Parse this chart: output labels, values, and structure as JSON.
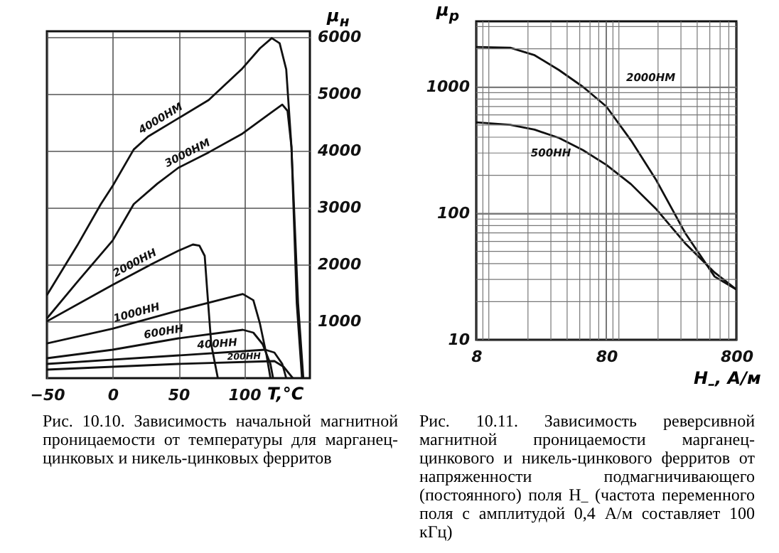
{
  "chart_data": [
    {
      "type": "line",
      "xlabel": "T,°C",
      "ylabel": "μ$_{н}$",
      "xlim": [
        -50,
        150
      ],
      "xticks": [
        -50,
        0,
        50,
        100
      ],
      "ylim": [
        0,
        6100
      ],
      "yticks": [
        1000,
        2000,
        3000,
        4000,
        5000,
        6000
      ],
      "grid": true,
      "annotations": [
        "Рис. 10.10. Зависимость начальной магнитной проницаемости от температуры для марганец-цинковых и никель-цинковых ферритов"
      ],
      "series": [
        {
          "name": "4000НМ",
          "color": "#111111",
          "x": [
            -50,
            -27,
            -9,
            0,
            16,
            27,
            50,
            73,
            98,
            112,
            121,
            127,
            132,
            136,
            141,
            145
          ],
          "values": [
            1460,
            2330,
            3060,
            3380,
            4020,
            4250,
            4570,
            4890,
            5430,
            5800,
            5980,
            5890,
            5430,
            4060,
            1320,
            0
          ]
        },
        {
          "name": "3000НМ",
          "color": "#111111",
          "x": [
            -50,
            -27,
            0,
            16,
            34,
            50,
            73,
            98,
            120,
            129,
            133,
            136,
            140,
            144
          ],
          "values": [
            1050,
            1690,
            2420,
            3060,
            3420,
            3700,
            3970,
            4290,
            4660,
            4810,
            4700,
            4060,
            1320,
            0
          ]
        },
        {
          "name": "2000НН",
          "color": "#111111",
          "x": [
            -50,
            0,
            30,
            50,
            61,
            66,
            70,
            72,
            75,
            80
          ],
          "values": [
            1000,
            1640,
            2010,
            2240,
            2350,
            2330,
            2150,
            1510,
            590,
            0
          ]
        },
        {
          "name": "1000НН",
          "color": "#111111",
          "x": [
            -50,
            0,
            50,
            99,
            107,
            112,
            117,
            120
          ],
          "values": [
            610,
            870,
            1190,
            1480,
            1370,
            960,
            410,
            0
          ]
        },
        {
          "name": "600НН",
          "color": "#111111",
          "x": [
            -50,
            0,
            50,
            99,
            107,
            114,
            120,
            122
          ],
          "values": [
            350,
            500,
            700,
            850,
            800,
            600,
            250,
            0
          ]
        },
        {
          "name": "400НН",
          "color": "#111111",
          "x": [
            -50,
            50,
            116,
            123,
            129,
            132
          ],
          "values": [
            250,
            400,
            500,
            450,
            250,
            0
          ]
        },
        {
          "name": "200НН",
          "color": "#111111",
          "x": [
            -50,
            50,
            123,
            130,
            137
          ],
          "values": [
            150,
            250,
            300,
            200,
            0
          ]
        }
      ]
    },
    {
      "type": "line",
      "xlabel": "H$_{–}$, А/м",
      "ylabel": "μ$_{р}$",
      "log": "xy",
      "xlim": [
        8,
        800
      ],
      "xticks": [
        8,
        80,
        800
      ],
      "ylim": [
        10,
        3300
      ],
      "yticks": [
        10,
        100,
        1000
      ],
      "grid": true,
      "annotations": [
        "Рис. 10.11. Зависимость реверсивной магнитной проницаемости марганец-цинкового и никель-цинкового ферритов от напряженности подмагничивающего (постоянного) поля H$_{–}$ (частота переменного поля с амплитудой 0,4 А/м составляет 100 кГц)"
      ],
      "series": [
        {
          "name": "2000НМ",
          "color": "#111111",
          "x": [
            8,
            14.6,
            22.5,
            34.6,
            53,
            80,
            124,
            192,
            323,
            545,
            800
          ],
          "values": [
            2070,
            2040,
            1780,
            1360,
            1000,
            700,
            377,
            186,
            70,
            31.6,
            25
          ]
        },
        {
          "name": "500НН",
          "color": "#111111",
          "x": [
            8,
            14.6,
            22.5,
            34.6,
            53,
            80,
            124,
            192,
            323,
            545,
            800
          ],
          "values": [
            524,
            501,
            459,
            395,
            316,
            242,
            170,
            109,
            58,
            34,
            25
          ]
        }
      ]
    }
  ]
}
